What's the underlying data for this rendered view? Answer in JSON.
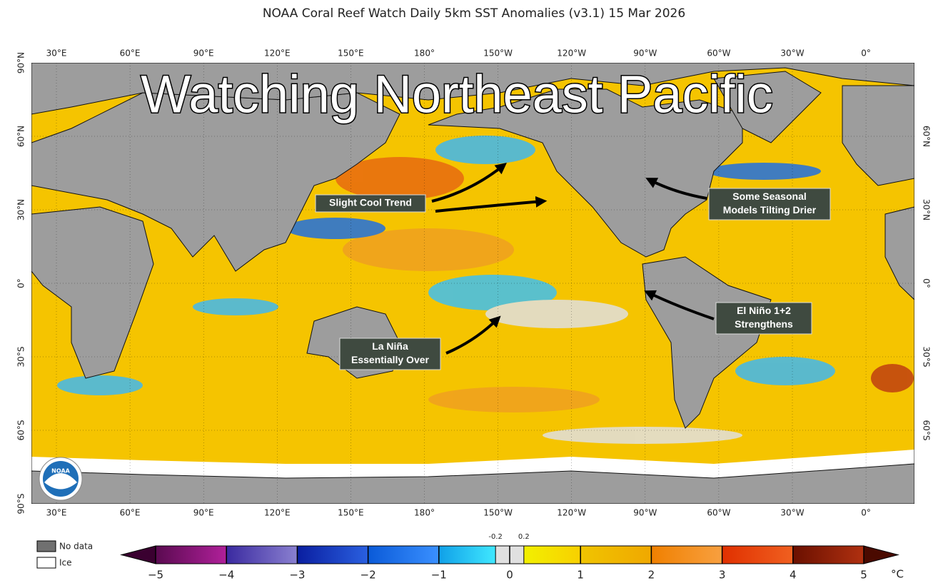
{
  "title": "NOAA Coral Reef Watch Daily 5km SST Anomalies  (v3.1)   15 Mar 2026",
  "overlay_title": "Watching Northeast Pacific",
  "longitude_labels": [
    "30°E",
    "60°E",
    "90°E",
    "120°E",
    "150°E",
    "180°",
    "150°W",
    "120°W",
    "90°W",
    "60°W",
    "30°W",
    "0°"
  ],
  "latitude_labels_left": [
    "90°N",
    "60°N",
    "30°N",
    "0°",
    "30°S",
    "60°S",
    "90°S"
  ],
  "latitude_labels_right": [
    "60°N",
    "30°N",
    "0°",
    "30°S",
    "60°S"
  ],
  "annotations": [
    {
      "lines": [
        "Slight Cool Trend"
      ]
    },
    {
      "lines": [
        "Some Seasonal",
        "Models Tilting Drier"
      ]
    },
    {
      "lines": [
        "El Niño 1+2",
        "Strengthens"
      ]
    },
    {
      "lines": [
        "La Niña",
        "Essentially Over"
      ]
    }
  ],
  "legend": {
    "no_data": "No data",
    "ice": "Ice"
  },
  "logo": "NOAA",
  "colorbar": {
    "lim": [
      -5,
      5
    ],
    "ticks": [
      {
        "value": -5,
        "label": "−5"
      },
      {
        "value": -4,
        "label": "−4"
      },
      {
        "value": -3,
        "label": "−3"
      },
      {
        "value": -2,
        "label": "−2"
      },
      {
        "value": -1,
        "label": "−1"
      },
      0,
      1,
      2,
      3,
      4,
      5
    ],
    "inner_ticks": [
      -0.2,
      0.2
    ],
    "unit": "°C"
  }
}
